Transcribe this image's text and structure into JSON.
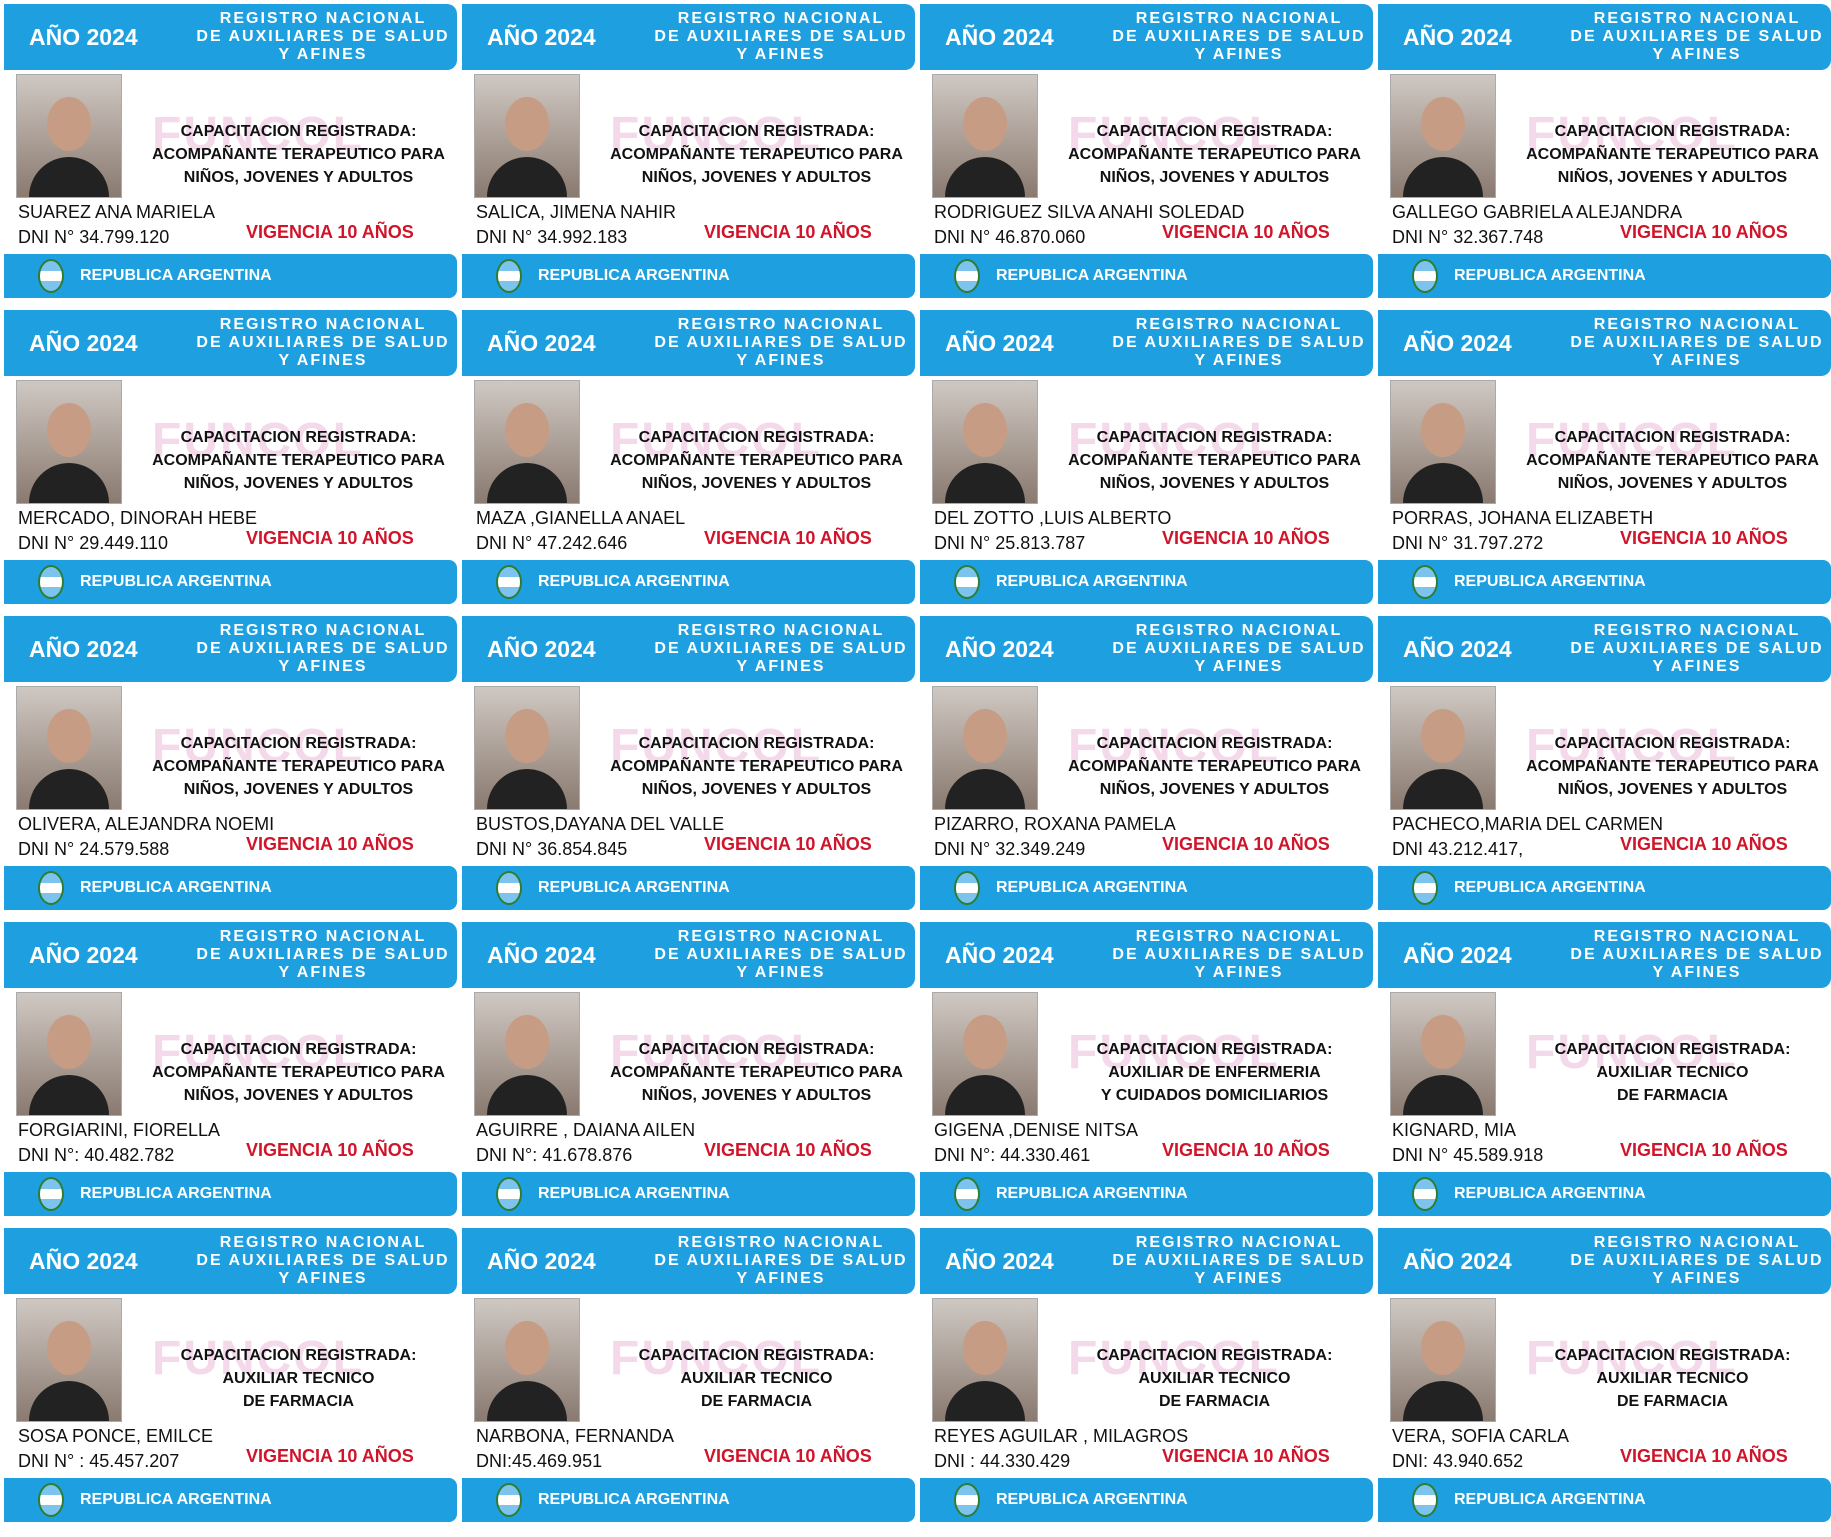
{
  "colors": {
    "header": "#1ea0e0",
    "validity": "#d0142a"
  },
  "card_common": {
    "year": "AÑO 2024",
    "registry": [
      "REGISTRO NACIONAL",
      "DE AUXILIARES DE SALUD",
      "Y AFINES"
    ],
    "validity": "VIGENCIA  10 AÑOS",
    "country": "REPUBLICA ARGENTINA",
    "watermark": "FUNCOL",
    "course_title": "CAPACITACION   REGISTRADA:"
  },
  "courses": {
    "at": [
      "ACOMPAÑANTE TERAPEUTICO PARA",
      "NIÑOS, JOVENES Y ADULTOS"
    ],
    "enf": [
      "AUXILIAR DE ENFERMERIA",
      "Y CUIDADOS DOMICILIARIOS"
    ],
    "far": [
      "AUXILIAR TECNICO",
      "DE FARMACIA"
    ]
  },
  "cards": [
    {
      "name": "SUAREZ ANA MARIELA",
      "dni": "DNI N°  34.799.120",
      "course": "at"
    },
    {
      "name": "SALICA, JIMENA NAHIR",
      "dni": "DNI N°  34.992.183",
      "course": "at"
    },
    {
      "name": "RODRIGUEZ SILVA ANAHI SOLEDAD",
      "dni": "DNI N° 46.870.060",
      "course": "at"
    },
    {
      "name": "GALLEGO GABRIELA  ALEJANDRA",
      "dni": "DNI N° 32.367.748",
      "course": "at"
    },
    {
      "name": "MERCADO, DINORAH HEBE",
      "dni": "DNI N° 29.449.110",
      "course": "at"
    },
    {
      "name": "MAZA ,GIANELLA ANAEL",
      "dni": "DNI N° 47.242.646",
      "course": "at"
    },
    {
      "name": "DEL ZOTTO ,LUIS ALBERTO",
      "dni": "DNI N°  25.813.787",
      "course": "at"
    },
    {
      "name": "PORRAS, JOHANA ELIZABETH",
      "dni": "DNI N° 31.797.272",
      "course": "at"
    },
    {
      "name": "OLIVERA, ALEJANDRA NOEMI",
      "dni": "DNI N° 24.579.588",
      "course": "at"
    },
    {
      "name": "BUSTOS,DAYANA DEL VALLE",
      "dni": "DNI N° 36.854.845",
      "course": "at"
    },
    {
      "name": "PIZARRO, ROXANA PAMELA",
      "dni": "DNI N° 32.349.249",
      "course": "at"
    },
    {
      "name": "PACHECO,MARIA DEL CARMEN",
      "dni": "DNI 43.212.417,",
      "course": "at"
    },
    {
      "name": "FORGIARINI, FIORELLA",
      "dni": "DNI N°: 40.482.782",
      "course": "at"
    },
    {
      "name": "AGUIRRE , DAIANA AILEN",
      "dni": "DNI N°: 41.678.876",
      "course": "at"
    },
    {
      "name": "GIGENA ,DENISE NITSA",
      "dni": "DNI N°: 44.330.461",
      "course": "enf"
    },
    {
      "name": "KIGNARD, MIA",
      "dni": "DNI N° 45.589.918",
      "course": "far"
    },
    {
      "name": "SOSA PONCE, EMILCE",
      "dni": "DNI N° : 45.457.207",
      "course": "far"
    },
    {
      "name": "NARBONA, FERNANDA",
      "dni": "DNI:45.469.951",
      "course": "far"
    },
    {
      "name": "REYES AGUILAR , MILAGROS",
      "dni": "DNI : 44.330.429",
      "course": "far"
    },
    {
      "name": "VERA, SOFIA CARLA",
      "dni": "DNI: 43.940.652",
      "course": "far"
    }
  ]
}
